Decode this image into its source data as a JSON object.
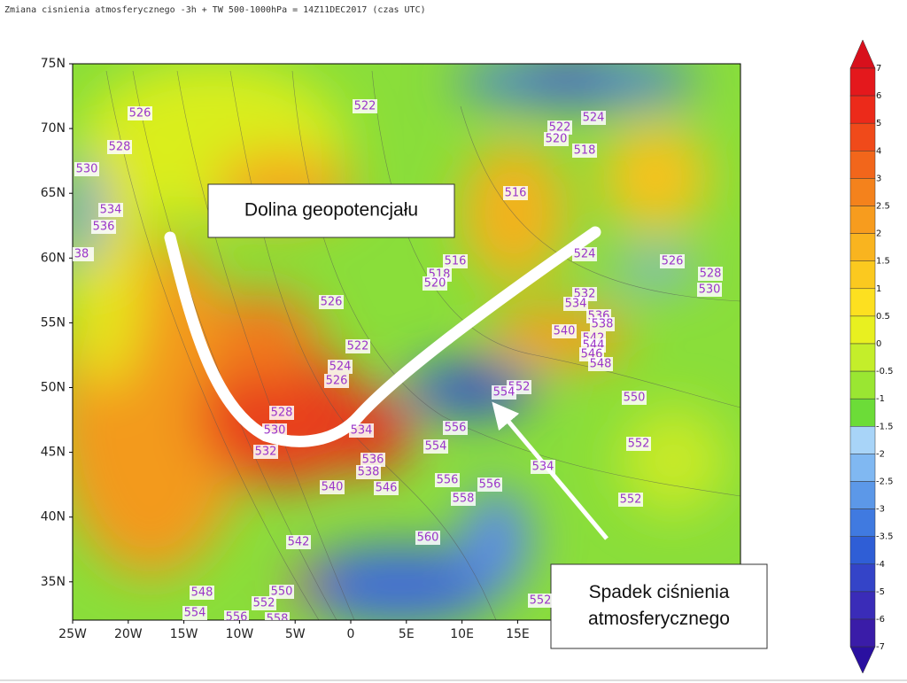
{
  "header": {
    "title": "Zmiana cisnienia atmosferycznego -3h + TW 500-1000hPa   = 14Z11DEC2017 (czas UTC)"
  },
  "map": {
    "lat_labels": [
      "75N",
      "70N",
      "65N",
      "60N",
      "55N",
      "50N",
      "45N",
      "40N",
      "35N"
    ],
    "lon_labels": [
      "25W",
      "20W",
      "15W",
      "10W",
      "5W",
      "0",
      "5E",
      "10E",
      "15E"
    ],
    "contour_labels": [
      526,
      522,
      528,
      530,
      534,
      536,
      38,
      524,
      522,
      520,
      518,
      516,
      524,
      526,
      528,
      530,
      516,
      518,
      520,
      526,
      532,
      534,
      536,
      538,
      540,
      542,
      544,
      546,
      548,
      522,
      524,
      526,
      552,
      554,
      550,
      528,
      530,
      534,
      556,
      554,
      552,
      532,
      536,
      538,
      546,
      540,
      534,
      556,
      556,
      558,
      552,
      542,
      560,
      548,
      550,
      552,
      554,
      556,
      558,
      552
    ]
  },
  "colorbar": {
    "labels": [
      7,
      6,
      5,
      4,
      3,
      2.5,
      2,
      1.5,
      1,
      0.5,
      0,
      -0.5,
      -1,
      -1.5,
      -2,
      -2.5,
      -3,
      -3.5,
      -4,
      -5,
      -6,
      -7
    ],
    "colors": [
      "#d8101c",
      "#e4181c",
      "#ec2a1a",
      "#f04a1a",
      "#f2661b",
      "#f4821c",
      "#f79c1e",
      "#f9b41f",
      "#fbc91f",
      "#fde020",
      "#e8f020",
      "#c4ee2a",
      "#9ae632",
      "#6cdc38",
      "#a8d4f8",
      "#80b8f2",
      "#5c98e8",
      "#407ae0",
      "#2f5ed6",
      "#3444c8",
      "#3a2cb8",
      "#3a1ca8",
      "#2a10a0"
    ]
  },
  "annotations": [
    {
      "lines": [
        "Dolina geopotencjału"
      ]
    },
    {
      "lines": [
        "Spadek ciśnienia",
        "atmosferycznego"
      ]
    }
  ]
}
